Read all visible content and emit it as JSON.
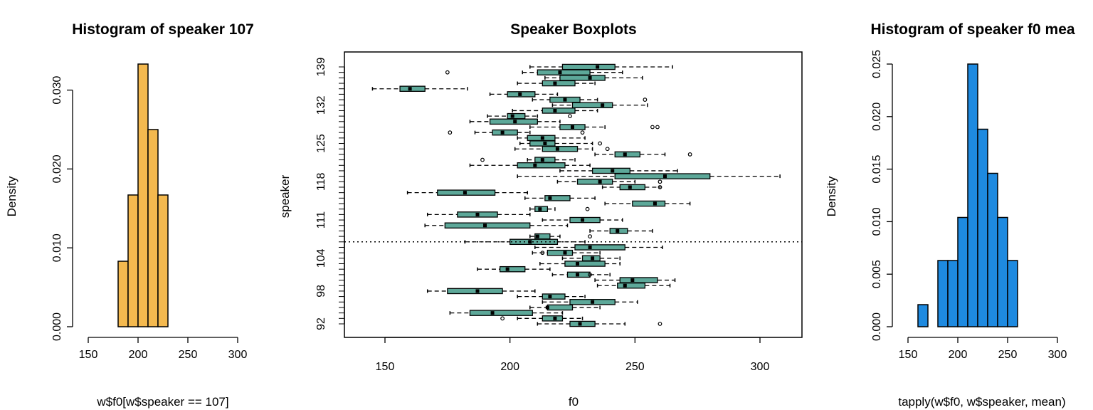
{
  "chart_data": [
    {
      "type": "histogram",
      "title": "Histogram of speaker 107",
      "xlabel": "w$f0[w$speaker == 107]",
      "ylabel": "Density",
      "xlim": [
        150,
        300
      ],
      "ylim": [
        0,
        0.0333
      ],
      "x_ticks": [
        "150",
        "200",
        "250",
        "300"
      ],
      "y_ticks": [
        "0.000",
        "0.010",
        "0.020",
        "0.030"
      ],
      "bins": [
        {
          "start": 180,
          "end": 190,
          "density": 0.0083
        },
        {
          "start": 190,
          "end": 200,
          "density": 0.0167
        },
        {
          "start": 200,
          "end": 210,
          "density": 0.0333
        },
        {
          "start": 210,
          "end": 220,
          "density": 0.025
        },
        {
          "start": 220,
          "end": 230,
          "density": 0.0167
        }
      ],
      "fill_color": "#f4b94f",
      "grid": false
    },
    {
      "type": "boxplot",
      "orientation": "horizontal",
      "title": "Speaker Boxplots",
      "xlabel": "f0",
      "ylabel": "speaker",
      "xlim": [
        150,
        300
      ],
      "x_ticks": [
        "150",
        "200",
        "250",
        "300"
      ],
      "y_ticks": [
        "92",
        "98",
        "104",
        "111",
        "118",
        "125",
        "132",
        "139"
      ],
      "fill_color": "#5da899",
      "reference_line": {
        "speaker": 107,
        "style": "dotted"
      },
      "grid": false,
      "series": [
        {
          "speaker": 92,
          "stats": [
            211,
            224,
            228,
            234,
            246
          ],
          "outliers": [
            260
          ]
        },
        {
          "speaker": 93,
          "stats": [
            203,
            213,
            218,
            221,
            229
          ],
          "outliers": [
            197
          ]
        },
        {
          "speaker": 94,
          "stats": [
            176,
            184,
            193,
            209,
            221
          ],
          "outliers": []
        },
        {
          "speaker": 95,
          "stats": [
            208,
            215,
            215,
            225,
            236
          ],
          "outliers": []
        },
        {
          "speaker": 96,
          "stats": [
            213,
            224,
            233,
            242,
            251
          ],
          "outliers": []
        },
        {
          "speaker": 97,
          "stats": [
            203,
            213,
            216,
            222,
            230
          ],
          "outliers": []
        },
        {
          "speaker": 98,
          "stats": [
            167,
            175,
            187,
            197,
            210
          ],
          "outliers": []
        },
        {
          "speaker": 99,
          "stats": [
            235,
            243,
            246,
            254,
            264
          ],
          "outliers": []
        },
        {
          "speaker": 100,
          "stats": [
            234,
            244,
            249,
            259,
            266
          ],
          "outliers": []
        },
        {
          "speaker": 101,
          "stats": [
            217,
            223,
            227,
            232,
            240
          ],
          "outliers": [
            232
          ]
        },
        {
          "speaker": 102,
          "stats": [
            187,
            196,
            199,
            206,
            216
          ],
          "outliers": []
        },
        {
          "speaker": 103,
          "stats": [
            212,
            222,
            227,
            238,
            244
          ],
          "outliers": []
        },
        {
          "speaker": 104,
          "stats": [
            221,
            229,
            233,
            236,
            244
          ],
          "outliers": []
        },
        {
          "speaker": 105,
          "stats": [
            209,
            215,
            222,
            225,
            236
          ],
          "outliers": [
            213
          ]
        },
        {
          "speaker": 106,
          "stats": [
            210,
            226,
            232,
            246,
            261
          ],
          "outliers": []
        },
        {
          "speaker": 107,
          "stats": [
            182,
            200,
            208,
            219,
            230
          ],
          "outliers": []
        },
        {
          "speaker": 108,
          "stats": [
            208,
            210,
            211,
            216,
            220
          ],
          "outliers": [
            232
          ]
        },
        {
          "speaker": 109,
          "stats": [
            232,
            240,
            243,
            247,
            257
          ],
          "outliers": []
        },
        {
          "speaker": 110,
          "stats": [
            166,
            174,
            190,
            208,
            223
          ],
          "outliers": []
        },
        {
          "speaker": 111,
          "stats": [
            213,
            224,
            229,
            236,
            245
          ],
          "outliers": []
        },
        {
          "speaker": 112,
          "stats": [
            167,
            179,
            187,
            195,
            208
          ],
          "outliers": []
        },
        {
          "speaker": 113,
          "stats": [
            208,
            210,
            212,
            215,
            218
          ],
          "outliers": [
            231
          ]
        },
        {
          "speaker": 114,
          "stats": [
            238,
            249,
            258,
            262,
            272
          ],
          "outliers": []
        },
        {
          "speaker": 115,
          "stats": [
            206,
            214,
            216,
            224,
            234
          ],
          "outliers": []
        },
        {
          "speaker": 116,
          "stats": [
            159,
            171,
            182,
            194,
            207
          ],
          "outliers": []
        },
        {
          "speaker": 117,
          "stats": [
            237,
            244,
            248,
            254,
            260
          ],
          "outliers": [
            260
          ]
        },
        {
          "speaker": 118,
          "stats": [
            219,
            227,
            236,
            241,
            250
          ],
          "outliers": [
            260
          ]
        },
        {
          "speaker": 119,
          "stats": [
            203,
            242,
            262,
            280,
            308
          ],
          "outliers": []
        },
        {
          "speaker": 120,
          "stats": [
            220,
            233,
            241,
            248,
            267
          ],
          "outliers": []
        },
        {
          "speaker": 121,
          "stats": [
            184,
            203,
            210,
            222,
            232
          ],
          "outliers": []
        },
        {
          "speaker": 122,
          "stats": [
            207,
            210,
            213,
            218,
            226
          ],
          "outliers": [
            189
          ]
        },
        {
          "speaker": 123,
          "stats": [
            234,
            242,
            246,
            252,
            262
          ],
          "outliers": [
            272
          ]
        },
        {
          "speaker": 124,
          "stats": [
            202,
            213,
            219,
            227,
            233
          ],
          "outliers": [
            239
          ]
        },
        {
          "speaker": 125,
          "stats": [
            204,
            208,
            214,
            218,
            233
          ],
          "outliers": [
            236
          ]
        },
        {
          "speaker": 126,
          "stats": [
            203,
            207,
            213,
            218,
            230
          ],
          "outliers": []
        },
        {
          "speaker": 127,
          "stats": [
            186,
            193,
            197,
            203,
            208
          ],
          "outliers": [
            176,
            229
          ]
        },
        {
          "speaker": 128,
          "stats": [
            208,
            220,
            225,
            230,
            238
          ],
          "outliers": [
            257,
            259
          ]
        },
        {
          "speaker": 129,
          "stats": [
            184,
            192,
            202,
            211,
            220
          ],
          "outliers": []
        },
        {
          "speaker": 130,
          "stats": [
            191,
            199,
            201,
            206,
            211
          ],
          "outliers": [
            224
          ]
        },
        {
          "speaker": 131,
          "stats": [
            201,
            213,
            218,
            226,
            235
          ],
          "outliers": []
        },
        {
          "speaker": 132,
          "stats": [
            217,
            225,
            237,
            241,
            255
          ],
          "outliers": []
        },
        {
          "speaker": 133,
          "stats": [
            209,
            216,
            222,
            228,
            235
          ],
          "outliers": [
            254
          ]
        },
        {
          "speaker": 134,
          "stats": [
            192,
            199,
            204,
            210,
            219
          ],
          "outliers": []
        },
        {
          "speaker": 135,
          "stats": [
            145,
            156,
            160,
            166,
            183
          ],
          "outliers": []
        },
        {
          "speaker": 136,
          "stats": [
            203,
            213,
            218,
            226,
            234
          ],
          "outliers": []
        },
        {
          "speaker": 137,
          "stats": [
            214,
            220,
            232,
            238,
            253
          ],
          "outliers": []
        },
        {
          "speaker": 138,
          "stats": [
            205,
            211,
            220,
            232,
            245
          ],
          "outliers": [
            175
          ]
        },
        {
          "speaker": 139,
          "stats": [
            208,
            221,
            235,
            242,
            265
          ],
          "outliers": []
        }
      ]
    },
    {
      "type": "histogram",
      "title": "Histogram of speaker f0 mea",
      "xlabel": "tapply(w$f0, w$speaker, mean)",
      "ylabel": "Density",
      "xlim": [
        150,
        300
      ],
      "ylim": [
        0,
        0.025
      ],
      "x_ticks": [
        "150",
        "200",
        "250",
        "300"
      ],
      "y_ticks": [
        "0.000",
        "0.005",
        "0.010",
        "0.015",
        "0.020",
        "0.025"
      ],
      "bins": [
        {
          "start": 160,
          "end": 170,
          "density": 0.0021
        },
        {
          "start": 170,
          "end": 180,
          "density": 0.0
        },
        {
          "start": 180,
          "end": 190,
          "density": 0.0063
        },
        {
          "start": 190,
          "end": 200,
          "density": 0.0063
        },
        {
          "start": 200,
          "end": 210,
          "density": 0.0104
        },
        {
          "start": 210,
          "end": 220,
          "density": 0.025
        },
        {
          "start": 220,
          "end": 230,
          "density": 0.0188
        },
        {
          "start": 230,
          "end": 240,
          "density": 0.0146
        },
        {
          "start": 240,
          "end": 250,
          "density": 0.0104
        },
        {
          "start": 250,
          "end": 260,
          "density": 0.0063
        }
      ],
      "fill_color": "#1e8ae0",
      "grid": false
    }
  ]
}
